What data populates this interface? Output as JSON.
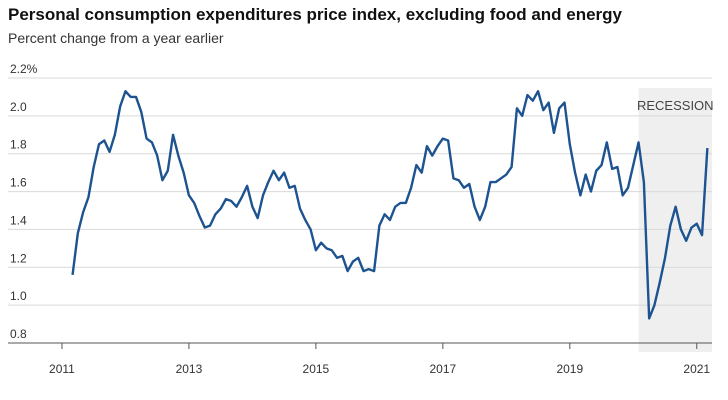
{
  "chart_data": {
    "type": "line",
    "title": "Personal consumption expenditures price index, excluding food and energy",
    "subtitle": "Percent change from a year earlier",
    "x": [
      2011.167,
      2011.25,
      2011.333,
      2011.417,
      2011.5,
      2011.583,
      2011.667,
      2011.75,
      2011.833,
      2011.917,
      2012,
      2012.083,
      2012.167,
      2012.25,
      2012.333,
      2012.417,
      2012.5,
      2012.583,
      2012.667,
      2012.75,
      2012.833,
      2012.917,
      2013,
      2013.083,
      2013.167,
      2013.25,
      2013.333,
      2013.417,
      2013.5,
      2013.583,
      2013.667,
      2013.75,
      2013.833,
      2013.917,
      2014,
      2014.083,
      2014.167,
      2014.25,
      2014.333,
      2014.417,
      2014.5,
      2014.583,
      2014.667,
      2014.75,
      2014.833,
      2014.917,
      2015,
      2015.083,
      2015.167,
      2015.25,
      2015.333,
      2015.417,
      2015.5,
      2015.583,
      2015.667,
      2015.75,
      2015.833,
      2015.917,
      2016,
      2016.083,
      2016.167,
      2016.25,
      2016.333,
      2016.417,
      2016.5,
      2016.583,
      2016.667,
      2016.75,
      2016.833,
      2016.917,
      2017,
      2017.083,
      2017.167,
      2017.25,
      2017.333,
      2017.417,
      2017.5,
      2017.583,
      2017.667,
      2017.75,
      2017.833,
      2017.917,
      2018,
      2018.083,
      2018.167,
      2018.25,
      2018.333,
      2018.417,
      2018.5,
      2018.583,
      2018.667,
      2018.75,
      2018.833,
      2018.917,
      2019,
      2019.083,
      2019.167,
      2019.25,
      2019.333,
      2019.417,
      2019.5,
      2019.583,
      2019.667,
      2019.75,
      2019.833,
      2019.917,
      2020,
      2020.083,
      2020.167,
      2020.25,
      2020.333,
      2020.417,
      2020.5,
      2020.583,
      2020.667,
      2020.75,
      2020.833,
      2020.917,
      2021,
      2021.083,
      2021.167
    ],
    "series": [
      {
        "color": "#1d5390",
        "values": [
          1.16,
          1.38,
          1.49,
          1.57,
          1.73,
          1.85,
          1.87,
          1.81,
          1.9,
          2.05,
          2.13,
          2.1,
          2.1,
          2.02,
          1.88,
          1.86,
          1.79,
          1.66,
          1.71,
          1.9,
          1.79,
          1.7,
          1.58,
          1.54,
          1.47,
          1.41,
          1.42,
          1.48,
          1.51,
          1.56,
          1.55,
          1.52,
          1.57,
          1.63,
          1.52,
          1.46,
          1.58,
          1.65,
          1.71,
          1.66,
          1.7,
          1.62,
          1.63,
          1.51,
          1.45,
          1.4,
          1.29,
          1.33,
          1.3,
          1.29,
          1.25,
          1.26,
          1.18,
          1.23,
          1.25,
          1.18,
          1.19,
          1.18,
          1.42,
          1.48,
          1.45,
          1.52,
          1.54,
          1.54,
          1.62,
          1.74,
          1.7,
          1.84,
          1.79,
          1.84,
          1.88,
          1.87,
          1.67,
          1.66,
          1.62,
          1.64,
          1.52,
          1.45,
          1.52,
          1.65,
          1.65,
          1.67,
          1.69,
          1.73,
          2.04,
          2.0,
          2.11,
          2.08,
          2.13,
          2.03,
          2.07,
          1.91,
          2.04,
          2.07,
          1.85,
          1.7,
          1.58,
          1.69,
          1.6,
          1.71,
          1.74,
          1.86,
          1.72,
          1.73,
          1.58,
          1.62,
          1.74,
          1.86,
          1.65,
          0.93,
          1.0,
          1.12,
          1.25,
          1.42,
          1.52,
          1.4,
          1.34,
          1.41,
          1.43,
          1.37,
          1.83
        ]
      }
    ],
    "xlim": [
      2010.15,
      2021.24
    ],
    "xticks": [
      2011,
      2013,
      2015,
      2017,
      2019,
      2021
    ],
    "ylim": [
      0.8,
      2.2
    ],
    "yticks": [
      0.8,
      {
        "value": 1,
        "label": "1.0"
      },
      1.2,
      1.4,
      1.6,
      1.8,
      {
        "value": 2,
        "label": "2.0"
      },
      {
        "value": 2.2,
        "label": "2.2%"
      }
    ],
    "grid": true,
    "recession": {
      "label": "RECESSION",
      "start": 2020.083,
      "end": 2021.24
    }
  }
}
